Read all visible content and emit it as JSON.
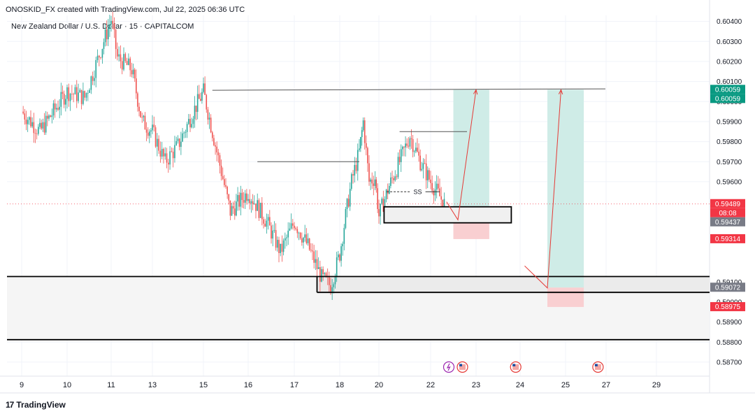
{
  "header": {
    "publish_line": "ONOSKID_FX created with TradingView.com, Jul 22, 2025 06:36 UTC",
    "symbol_line": "New Zealand Dollar / U.S. Dollar · 15 · CAPITALCOM"
  },
  "footer": {
    "brand_logo": "17",
    "brand_name": "TradingView"
  },
  "colors": {
    "up_candle": "#26a69a",
    "down_candle": "#ef5350",
    "target_zone": "#cfece7",
    "stop_zone": "#f9cfd1",
    "label_green": "#089981",
    "label_red": "#f23645",
    "label_gray": "#787b86",
    "axis_text": "#131722"
  },
  "chart_data": {
    "type": "candlestick",
    "symbol": "NZDUSD",
    "timeframe": "15",
    "y_axis": {
      "ticks": [
        "0.60400",
        "0.60300",
        "0.60200",
        "0.60100",
        "0.60000",
        "0.59900",
        "0.59800",
        "0.59700",
        "0.59600",
        "0.59100",
        "0.59000",
        "0.58900",
        "0.58800",
        "0.58700"
      ],
      "ylim": [
        0.5863,
        0.6043
      ]
    },
    "x_axis": {
      "ticks": [
        "9",
        "10",
        "11",
        "13",
        "15",
        "16",
        "17",
        "18",
        "20",
        "22",
        "23",
        "24",
        "25",
        "27",
        "29"
      ]
    },
    "price_path": [
      [
        9,
        0.5995
      ],
      [
        9.4,
        0.5985
      ],
      [
        10,
        0.6005
      ],
      [
        10.4,
        0.6002
      ],
      [
        10.8,
        0.6028
      ],
      [
        11,
        0.6041
      ],
      [
        11.3,
        0.6022
      ],
      [
        12,
        0.6016
      ],
      [
        12.5,
        0.599
      ],
      [
        13,
        0.5985
      ],
      [
        13.5,
        0.597
      ],
      [
        14,
        0.5978
      ],
      [
        14.6,
        0.5995
      ],
      [
        15,
        0.6005
      ],
      [
        15.3,
        0.5975
      ],
      [
        15.6,
        0.5945
      ],
      [
        16,
        0.5955
      ],
      [
        16.4,
        0.594
      ],
      [
        16.7,
        0.5925
      ],
      [
        17,
        0.594
      ],
      [
        17.3,
        0.5928
      ],
      [
        17.6,
        0.5912
      ],
      [
        17.8,
        0.5908
      ],
      [
        18,
        0.5924
      ],
      [
        18.3,
        0.5943
      ],
      [
        18.6,
        0.596
      ],
      [
        19,
        0.5975
      ],
      [
        19.2,
        0.599
      ],
      [
        19.5,
        0.596
      ],
      [
        19.8,
        0.5962
      ],
      [
        20,
        0.5943
      ],
      [
        20.4,
        0.5958
      ],
      [
        20.8,
        0.597
      ],
      [
        21.2,
        0.5983
      ],
      [
        21.6,
        0.597
      ],
      [
        22,
        0.596
      ],
      [
        22.3,
        0.5949
      ]
    ],
    "labels": [
      {
        "text": "0.60059",
        "color": "green",
        "price": 0.60059
      },
      {
        "text": "0.60059",
        "color": "green",
        "price": 0.60059
      },
      {
        "text": "0.59489",
        "color": "red",
        "price": 0.59489
      },
      {
        "text": "08:08",
        "color": "red",
        "price": 0.59489
      },
      {
        "text": "0.59437",
        "color": "gray",
        "price": 0.59437
      },
      {
        "text": "0.59314",
        "color": "red",
        "price": 0.59314
      },
      {
        "text": "0.59072",
        "color": "gray",
        "price": 0.59072
      },
      {
        "text": "0.58975",
        "color": "red",
        "price": 0.58975
      }
    ],
    "annotations": {
      "ss_label": "SS",
      "resistance_price": 0.6006,
      "demand_zone": {
        "top": 0.59127,
        "bottom": 0.59048
      },
      "demand_extension_bottom": 0.58812,
      "small_box": {
        "top": 0.59475,
        "bottom": 0.59395,
        "start": 20.2,
        "end": 23.8
      },
      "trade_1": {
        "start": 22.5,
        "end": 23.3,
        "entry": 0.59437,
        "stop": 0.59314,
        "target": 0.60059
      },
      "trade_2": {
        "start": 24.6,
        "end": 25.9,
        "entry": 0.59072,
        "stop": 0.58975,
        "target": 0.60059
      },
      "hlines": [
        {
          "price": 0.597,
          "start": 16.2,
          "end": 19
        },
        {
          "price": 0.5985,
          "start": 20.8,
          "end": 22.8
        }
      ],
      "event_icons": [
        {
          "day": 22.4,
          "kind": "lightning"
        },
        {
          "day": 22.7,
          "kind": "us-flag"
        },
        {
          "day": 23.9,
          "kind": "us-flag"
        },
        {
          "day": 26.6,
          "kind": "us-flag"
        }
      ]
    }
  }
}
